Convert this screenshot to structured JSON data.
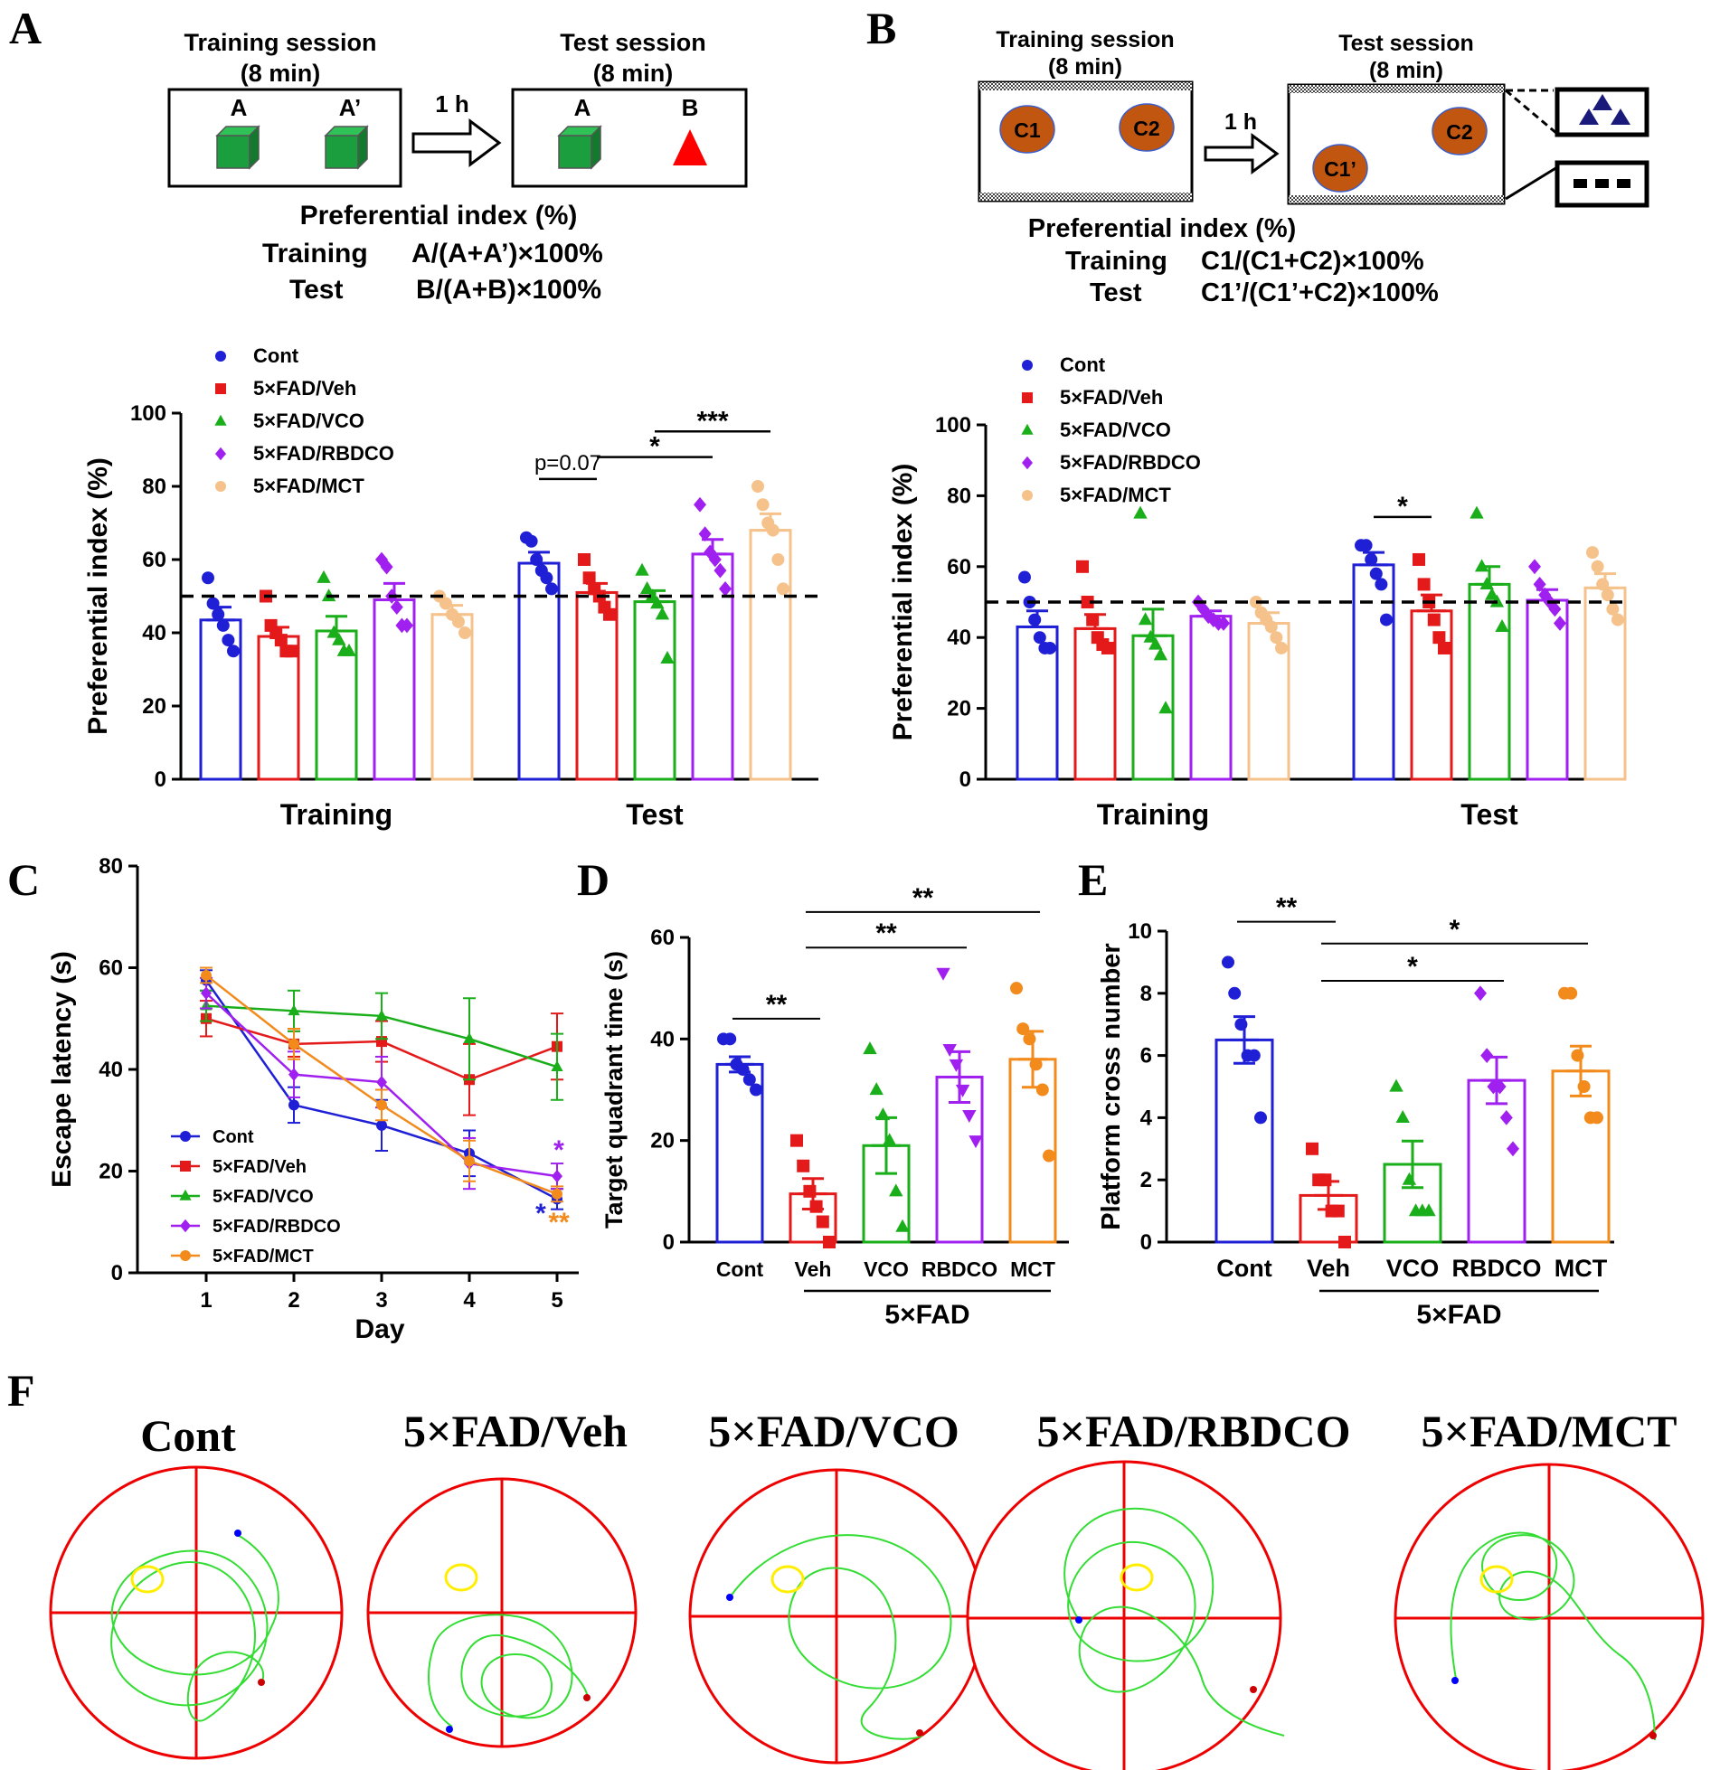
{
  "colors": {
    "cont": "#1f1fd6",
    "veh": "#e41a1a",
    "vco": "#1aae1a",
    "rbdco": "#a020f0",
    "mct_light": "#f6c28b",
    "mct": "#f28a1c",
    "cube": "#1b9e3e",
    "triangle": "#ff0000",
    "object_c": "#c0560f",
    "maze_path": "#33dd33",
    "maze_border": "#ee0000",
    "platform": "#ffee00"
  },
  "group_names": [
    "Cont",
    "5×FAD/Veh",
    "5×FAD/VCO",
    "5×FAD/RBDCO",
    "5×FAD/MCT"
  ],
  "panelA": {
    "letter": "A",
    "schema": {
      "training_title": "Training session",
      "training_duration": "(8 min)",
      "test_title": "Test session",
      "test_duration": "(8 min)",
      "interval": "1 h",
      "obj_a": "A",
      "obj_a_prime": "A’",
      "obj_a2": "A",
      "obj_b": "B",
      "index_title": "Preferential index (%)",
      "training_label": "Training",
      "training_formula": "A/(A+A’)×100%",
      "test_label": "Test",
      "test_formula": "B/(A+B)×100%"
    }
  },
  "panelB": {
    "letter": "B",
    "schema": {
      "training_title": "Training session",
      "training_duration": "(8 min)",
      "test_title": "Test session",
      "test_duration": "(8 min)",
      "interval": "1 h",
      "c1": "C1",
      "c2": "C2",
      "c1p": "C1’",
      "c2b": "C2",
      "index_title": "Preferential index (%)",
      "training_label": "Training",
      "training_formula": "C1/(C1+C2)×100%",
      "test_label": "Test",
      "test_formula": "C1’/(C1’+C2)×100%"
    }
  },
  "panelC": {
    "letter": "C"
  },
  "panelD": {
    "letter": "D"
  },
  "panelE": {
    "letter": "E"
  },
  "panelF": {
    "letter": "F"
  },
  "chart_data": [
    {
      "id": "A",
      "type": "bar",
      "ylabel": "Preferential index (%)",
      "ylim": [
        0,
        100
      ],
      "yticks": [
        0,
        20,
        40,
        60,
        80,
        100
      ],
      "categories": [
        "Training",
        "Test"
      ],
      "reference_line": 50,
      "legend": [
        "Cont",
        "5×FAD/Veh",
        "5×FAD/VCO",
        "5×FAD/RBDCO",
        "5×FAD/MCT"
      ],
      "series": [
        {
          "name": "Cont",
          "values": [
            43.5,
            59.0
          ],
          "sem": [
            3.5,
            3.0
          ],
          "points": [
            [
              55,
              48,
              45,
              42,
              38,
              35
            ],
            [
              66,
              65,
              60,
              57,
              55,
              52
            ]
          ]
        },
        {
          "name": "5×FAD/Veh",
          "values": [
            39.0,
            51.0
          ],
          "sem": [
            2.5,
            2.5
          ],
          "points": [
            [
              50,
              42,
              40,
              38,
              35,
              35
            ],
            [
              60,
              55,
              52,
              50,
              47,
              45
            ]
          ]
        },
        {
          "name": "5×FAD/VCO",
          "values": [
            40.5,
            48.5
          ],
          "sem": [
            4.0,
            3.0
          ],
          "points": [
            [
              55,
              50,
              40,
              38,
              35,
              35
            ],
            [
              57,
              52,
              50,
              48,
              45,
              33
            ]
          ]
        },
        {
          "name": "5×FAD/RBDCO",
          "values": [
            49.0,
            61.5
          ],
          "sem": [
            4.5,
            4.0
          ],
          "points": [
            [
              60,
              58,
              50,
              47,
              42,
              42
            ],
            [
              75,
              67,
              62,
              60,
              57,
              52
            ]
          ]
        },
        {
          "name": "5×FAD/MCT",
          "values": [
            45.0,
            68.0
          ],
          "sem": [
            2.5,
            4.5
          ],
          "points": [
            [
              50,
              48,
              45,
              43,
              40
            ],
            [
              80,
              75,
              70,
              68,
              60,
              52
            ]
          ]
        }
      ],
      "annotations": [
        {
          "label": "p=0.07",
          "groups": [
            0,
            1
          ],
          "category": 1,
          "level": 82
        },
        {
          "label": "*",
          "groups": [
            1,
            3
          ],
          "category": 1,
          "level": 88
        },
        {
          "label": "***",
          "groups": [
            2,
            4
          ],
          "category": 1,
          "level": 95
        }
      ]
    },
    {
      "id": "B",
      "type": "bar",
      "ylabel": "Preferential index (%)",
      "ylim": [
        0,
        100
      ],
      "yticks": [
        0,
        20,
        40,
        60,
        80,
        100
      ],
      "categories": [
        "Training",
        "Test"
      ],
      "reference_line": 50,
      "legend": [
        "Cont",
        "5×FAD/Veh",
        "5×FAD/VCO",
        "5×FAD/RBDCO",
        "5×FAD/MCT"
      ],
      "series": [
        {
          "name": "Cont",
          "values": [
            43.0,
            60.5
          ],
          "sem": [
            4.5,
            3.5
          ],
          "points": [
            [
              57,
              50,
              45,
              40,
              37,
              37
            ],
            [
              66,
              66,
              62,
              58,
              55,
              45
            ]
          ]
        },
        {
          "name": "5×FAD/Veh",
          "values": [
            42.5,
            47.5
          ],
          "sem": [
            4.0,
            4.5
          ],
          "points": [
            [
              60,
              50,
              45,
              40,
              38,
              37
            ],
            [
              62,
              55,
              50,
              45,
              40,
              37
            ]
          ]
        },
        {
          "name": "5×FAD/VCO",
          "values": [
            40.5,
            55.0
          ],
          "sem": [
            7.5,
            5.0
          ],
          "points": [
            [
              75,
              45,
              40,
              38,
              35,
              20
            ],
            [
              75,
              60,
              55,
              52,
              50,
              43
            ]
          ]
        },
        {
          "name": "5×FAD/RBDCO",
          "values": [
            46.0,
            50.5
          ],
          "sem": [
            1.5,
            3.0
          ],
          "points": [
            [
              50,
              48,
              46,
              45,
              44,
              44
            ],
            [
              60,
              55,
              52,
              50,
              48,
              44
            ]
          ]
        },
        {
          "name": "5×FAD/MCT",
          "values": [
            44.0,
            54.0
          ],
          "sem": [
            3.0,
            4.0
          ],
          "points": [
            [
              50,
              47,
              45,
              43,
              40,
              37
            ],
            [
              64,
              60,
              55,
              52,
              48,
              45
            ]
          ]
        }
      ],
      "annotations": [
        {
          "label": "*",
          "groups": [
            0,
            1
          ],
          "category": 1,
          "level": 74
        }
      ]
    },
    {
      "id": "C",
      "type": "line",
      "xlabel": "Day",
      "ylabel": "Escape latency (s)",
      "ylim": [
        0,
        80
      ],
      "yticks": [
        0,
        20,
        40,
        60,
        80
      ],
      "x": [
        1,
        2,
        3,
        4,
        5
      ],
      "legend": [
        "Cont",
        "5×FAD/Veh",
        "5×FAD/VCO",
        "5×FAD/RBDCO",
        "5×FAD/MCT"
      ],
      "series": [
        {
          "name": "Cont",
          "values": [
            57.5,
            33.0,
            29.0,
            23.5,
            14.5
          ],
          "sem": [
            2.0,
            3.5,
            5.0,
            4.5,
            2.0
          ]
        },
        {
          "name": "5×FAD/Veh",
          "values": [
            50.0,
            45.0,
            45.5,
            38.0,
            44.5
          ],
          "sem": [
            3.5,
            2.5,
            4.0,
            7.0,
            6.5
          ]
        },
        {
          "name": "5×FAD/VCO",
          "values": [
            52.5,
            51.5,
            50.5,
            46.0,
            40.5
          ],
          "sem": [
            3.0,
            4.0,
            4.5,
            8.0,
            6.5
          ]
        },
        {
          "name": "5×FAD/RBDCO",
          "values": [
            55.0,
            39.0,
            37.5,
            21.5,
            19.0
          ],
          "sem": [
            3.0,
            4.5,
            5.0,
            5.0,
            2.5
          ]
        },
        {
          "name": "5×FAD/MCT",
          "values": [
            58.5,
            45.0,
            33.0,
            22.0,
            15.5
          ],
          "sem": [
            1.5,
            3.0,
            3.0,
            4.0,
            1.5
          ]
        }
      ],
      "annotations": [
        {
          "label": "*",
          "series": 0
        },
        {
          "label": "*",
          "series": 3
        },
        {
          "label": "**",
          "series": 4
        }
      ]
    },
    {
      "id": "D",
      "type": "bar",
      "ylabel": "Target quadrant time (s)",
      "ylim": [
        0,
        60
      ],
      "yticks": [
        0,
        20,
        40,
        60
      ],
      "categories": [
        "Cont",
        "Veh",
        "VCO",
        "RBDCO",
        "MCT"
      ],
      "group_label": "5×FAD",
      "values": [
        35.0,
        9.5,
        19.0,
        32.5,
        36.0
      ],
      "sem": [
        1.5,
        3.0,
        5.5,
        5.0,
        5.5
      ],
      "points": [
        [
          40,
          40,
          35,
          34,
          32,
          30
        ],
        [
          20,
          15,
          10,
          7,
          4,
          0
        ],
        [
          38,
          30,
          25,
          20,
          10,
          3
        ],
        [
          53,
          38,
          35,
          30,
          25,
          20
        ],
        [
          50,
          42,
          40,
          35,
          30,
          17
        ]
      ],
      "annotations": [
        {
          "label": "**",
          "groups": [
            0,
            1
          ],
          "level": 44
        },
        {
          "label": "**",
          "groups": [
            1,
            3
          ],
          "level": 58
        },
        {
          "label": "**",
          "groups": [
            1,
            4
          ],
          "level": 65
        }
      ]
    },
    {
      "id": "E",
      "type": "bar",
      "ylabel": "Platform cross number",
      "ylim": [
        0,
        10
      ],
      "yticks": [
        0,
        2,
        4,
        6,
        8,
        10
      ],
      "categories": [
        "Cont",
        "Veh",
        "VCO",
        "RBDCO",
        "MCT"
      ],
      "group_label": "5×FAD",
      "values": [
        6.5,
        1.5,
        2.5,
        5.2,
        5.5
      ],
      "sem": [
        0.75,
        0.45,
        0.75,
        0.75,
        0.8
      ],
      "points": [
        [
          9,
          8,
          7,
          6,
          6,
          4
        ],
        [
          3,
          2,
          2,
          1,
          1,
          0
        ],
        [
          5,
          4,
          2,
          1,
          1,
          1
        ],
        [
          8,
          6,
          5,
          5,
          4,
          3
        ],
        [
          8,
          8,
          6,
          5,
          4,
          4
        ]
      ],
      "annotations": [
        {
          "label": "**",
          "groups": [
            0,
            1
          ],
          "level": 10.3
        },
        {
          "label": "*",
          "groups": [
            1,
            3
          ],
          "level": 8.4
        },
        {
          "label": "*",
          "groups": [
            1,
            4
          ],
          "level": 9.6
        }
      ]
    }
  ]
}
